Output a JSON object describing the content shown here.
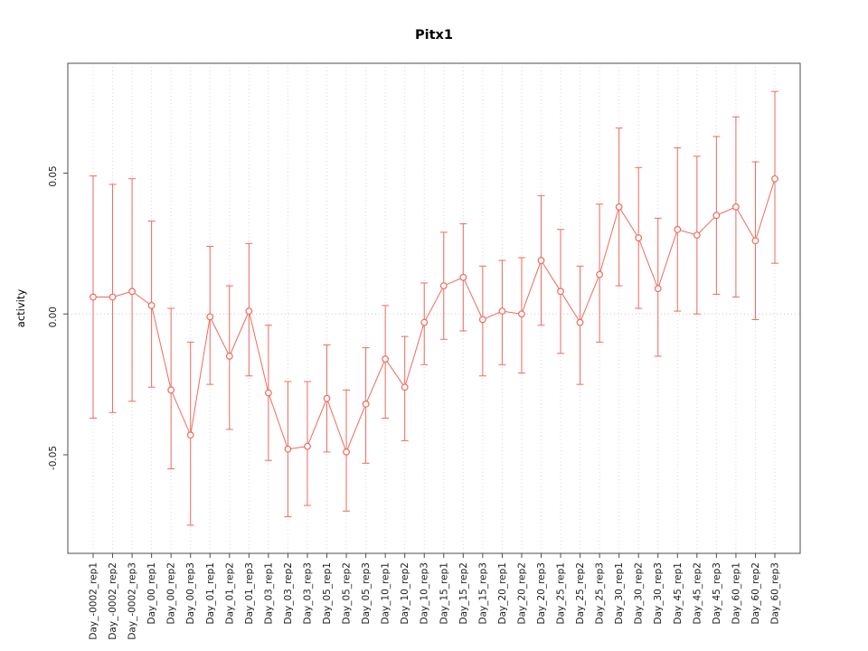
{
  "chart_data": {
    "type": "line",
    "title": "Pitx1",
    "ylabel": "activity",
    "xlabel": "",
    "legend": "none",
    "grid": "vertical-dotted",
    "series_color": "#ee6a5f",
    "grid_color": "#d9d9d9",
    "zero_line_color": "#cccccc",
    "axis_color": "#4d4d4d",
    "ylim": [
      -0.085,
      0.089
    ],
    "yticks": [
      -0.05,
      0,
      0.05
    ],
    "ytick_labels": [
      "-0.05",
      "0.00",
      "0.05"
    ],
    "categories": [
      "Day_-0002_rep1",
      "Day_-0002_rep2",
      "Day_-0002_rep3",
      "Day_00_rep1",
      "Day_00_rep2",
      "Day_00_rep3",
      "Day_01_rep1",
      "Day_01_rep2",
      "Day_01_rep3",
      "Day_03_rep1",
      "Day_03_rep2",
      "Day_03_rep3",
      "Day_05_rep1",
      "Day_05_rep2",
      "Day_05_rep3",
      "Day_10_rep1",
      "Day_10_rep2",
      "Day_10_rep3",
      "Day_15_rep1",
      "Day_15_rep2",
      "Day_15_rep3",
      "Day_20_rep1",
      "Day_20_rep2",
      "Day_20_rep3",
      "Day_25_rep1",
      "Day_25_rep2",
      "Day_25_rep3",
      "Day_30_rep1",
      "Day_30_rep2",
      "Day_30_rep3",
      "Day_45_rep1",
      "Day_45_rep2",
      "Day_45_rep3",
      "Day_60_rep1",
      "Day_60_rep2",
      "Day_60_rep3"
    ],
    "values": [
      0.006,
      0.006,
      0.008,
      0.003,
      -0.027,
      -0.043,
      -0.001,
      -0.015,
      0.001,
      -0.028,
      -0.048,
      -0.047,
      -0.03,
      -0.049,
      -0.032,
      -0.016,
      -0.026,
      -0.003,
      0.01,
      0.013,
      -0.002,
      0.001,
      0.0,
      0.019,
      0.008,
      -0.003,
      0.014,
      0.038,
      0.027,
      0.009,
      0.03,
      0.028,
      0.035,
      0.038,
      0.026,
      0.048
    ],
    "error_low": [
      -0.037,
      -0.035,
      -0.031,
      -0.026,
      -0.055,
      -0.075,
      -0.025,
      -0.041,
      -0.022,
      -0.052,
      -0.072,
      -0.068,
      -0.049,
      -0.07,
      -0.053,
      -0.037,
      -0.045,
      -0.018,
      -0.009,
      -0.006,
      -0.022,
      -0.018,
      -0.021,
      -0.004,
      -0.014,
      -0.025,
      -0.01,
      0.01,
      0.002,
      -0.015,
      0.001,
      0.0,
      0.007,
      0.006,
      -0.002,
      0.018
    ],
    "error_high": [
      0.049,
      0.046,
      0.048,
      0.033,
      0.002,
      -0.01,
      0.024,
      0.01,
      0.025,
      -0.004,
      -0.024,
      -0.024,
      -0.011,
      -0.027,
      -0.012,
      0.003,
      -0.008,
      0.011,
      0.029,
      0.032,
      0.017,
      0.019,
      0.02,
      0.042,
      0.03,
      0.017,
      0.039,
      0.066,
      0.052,
      0.034,
      0.059,
      0.056,
      0.063,
      0.07,
      0.054,
      0.079
    ]
  }
}
